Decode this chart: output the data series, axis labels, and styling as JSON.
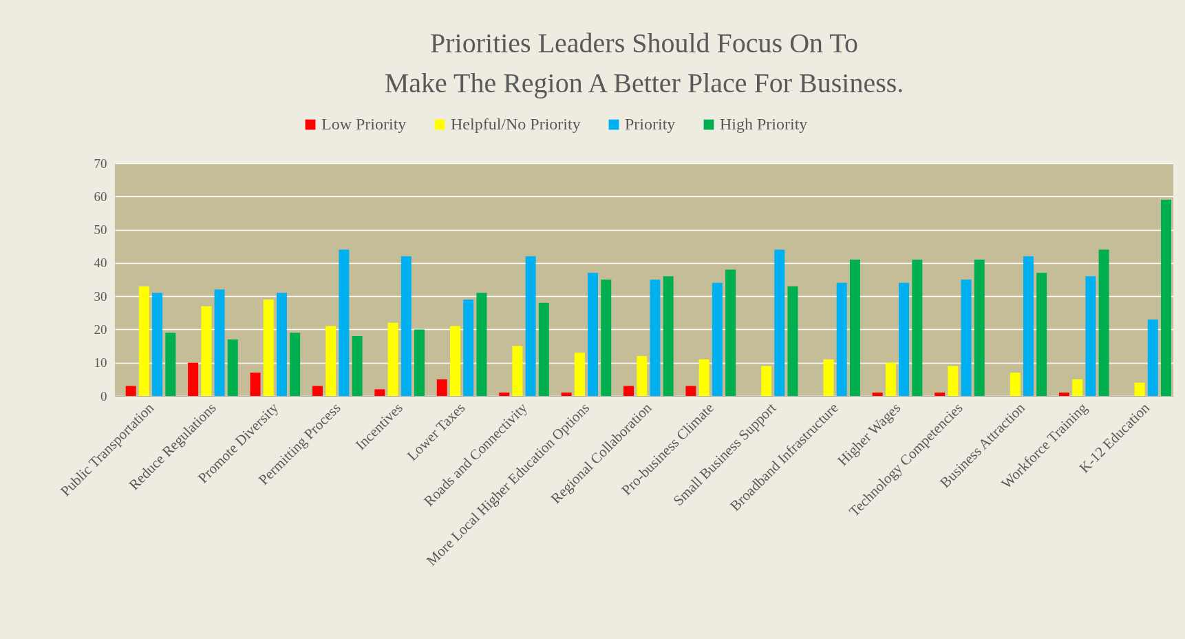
{
  "chart_data": {
    "type": "bar",
    "title": "Priorities Leaders Should Focus On To\nMake The Region A Better Place For Business.",
    "categories": [
      "Public Transportation",
      "Reduce Regulations",
      "Promote Diversity",
      "Permitting Process",
      "Incentives",
      "Lower Taxes",
      "Roads and Connectivity",
      "More Local Higher Education Options",
      "Regional Collaboration",
      "Pro-business Climate",
      "Small Business Support",
      "Broadband Infrastructure",
      "Higher Wages",
      "Technology Competencies",
      "Business Attraction",
      "Workforce Training",
      "K-12 Education"
    ],
    "series": [
      {
        "name": "Low Priority",
        "color": "#ff0000",
        "values": [
          3,
          10,
          7,
          3,
          2,
          5,
          1,
          1,
          3,
          3,
          0,
          0,
          1,
          1,
          0,
          1,
          0
        ]
      },
      {
        "name": "Helpful/No Priority",
        "color": "#ffff00",
        "values": [
          33,
          27,
          29,
          21,
          22,
          21,
          15,
          13,
          12,
          11,
          9,
          11,
          10,
          9,
          7,
          5,
          4
        ]
      },
      {
        "name": "Priority",
        "color": "#00b0f0",
        "values": [
          31,
          32,
          31,
          44,
          42,
          29,
          42,
          37,
          35,
          34,
          44,
          34,
          34,
          35,
          42,
          36,
          23
        ]
      },
      {
        "name": "High Priority",
        "color": "#00b050",
        "values": [
          19,
          17,
          19,
          18,
          20,
          31,
          28,
          35,
          36,
          38,
          33,
          41,
          41,
          41,
          37,
          44,
          59
        ]
      }
    ],
    "ylim": [
      0,
      70
    ],
    "yticks": [
      0,
      10,
      20,
      30,
      40,
      50,
      60,
      70
    ],
    "grid": "y",
    "legend": "top"
  }
}
